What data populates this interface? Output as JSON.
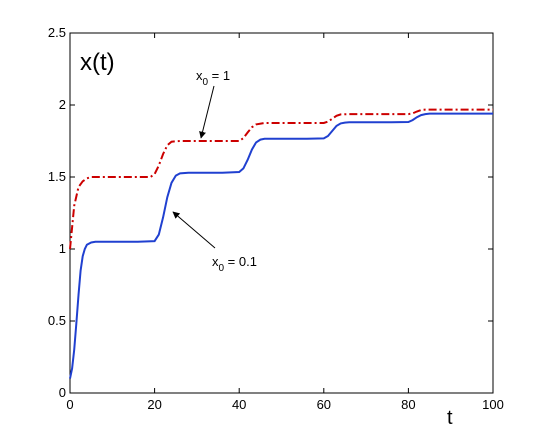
{
  "chart_data": {
    "type": "line",
    "title": "",
    "xlabel": "t",
    "ylabel": "x(t)",
    "xlim": [
      0,
      100
    ],
    "ylim": [
      0,
      2.5
    ],
    "xticks": [
      "0",
      "20",
      "40",
      "60",
      "80",
      "100"
    ],
    "yticks": [
      "0",
      "0.5",
      "1",
      "1.5",
      "2",
      "2.5"
    ],
    "grid": false,
    "legend": "none",
    "series": [
      {
        "color": "#cc0000",
        "style": "dashdot",
        "x": [
          0,
          1,
          2,
          3,
          4,
          5,
          6,
          8,
          12,
          16,
          19,
          20,
          21,
          22,
          23,
          24,
          26,
          30,
          35,
          40,
          41,
          42,
          43,
          44,
          46,
          50,
          55,
          60,
          61,
          62,
          63,
          64,
          66,
          70,
          75,
          80,
          81,
          82,
          83,
          84,
          86,
          90,
          95,
          100
        ],
        "values": [
          1.0,
          1.3,
          1.43,
          1.47,
          1.49,
          1.5,
          1.5,
          1.5,
          1.5,
          1.5,
          1.5,
          1.52,
          1.58,
          1.66,
          1.72,
          1.745,
          1.75,
          1.75,
          1.75,
          1.75,
          1.77,
          1.81,
          1.845,
          1.865,
          1.875,
          1.875,
          1.875,
          1.875,
          1.885,
          1.905,
          1.925,
          1.935,
          1.937,
          1.937,
          1.937,
          1.937,
          1.942,
          1.955,
          1.965,
          1.968,
          1.968,
          1.968,
          1.968,
          1.968
        ],
        "annotation": {
          "label": "x",
          "sub": "0",
          "rest": " = 1",
          "x": 30,
          "y": 1.75
        }
      },
      {
        "color": "#2040d0",
        "style": "solid",
        "x": [
          0,
          0.5,
          1,
          1.5,
          2,
          2.5,
          3,
          3.5,
          4,
          5,
          6,
          8,
          12,
          16,
          20,
          21,
          22,
          23,
          24,
          25,
          26,
          28,
          32,
          36,
          40,
          41,
          42,
          43,
          44,
          45,
          46,
          48,
          52,
          56,
          60,
          61,
          62,
          63,
          64,
          65,
          66,
          68,
          72,
          76,
          80,
          81,
          82,
          83,
          84,
          85,
          86,
          88,
          92,
          96,
          100
        ],
        "values": [
          0.1,
          0.17,
          0.3,
          0.48,
          0.68,
          0.85,
          0.95,
          1.0,
          1.03,
          1.045,
          1.05,
          1.05,
          1.05,
          1.05,
          1.055,
          1.1,
          1.22,
          1.36,
          1.46,
          1.51,
          1.525,
          1.53,
          1.53,
          1.53,
          1.535,
          1.56,
          1.62,
          1.69,
          1.74,
          1.76,
          1.765,
          1.765,
          1.765,
          1.765,
          1.768,
          1.785,
          1.82,
          1.855,
          1.872,
          1.878,
          1.88,
          1.88,
          1.88,
          1.88,
          1.882,
          1.895,
          1.915,
          1.93,
          1.937,
          1.94,
          1.94,
          1.94,
          1.94,
          1.94,
          1.94
        ],
        "annotation": {
          "label": "x",
          "sub": "0",
          "rest": " = 0.1",
          "x": 24,
          "y": 1.26
        }
      }
    ]
  }
}
